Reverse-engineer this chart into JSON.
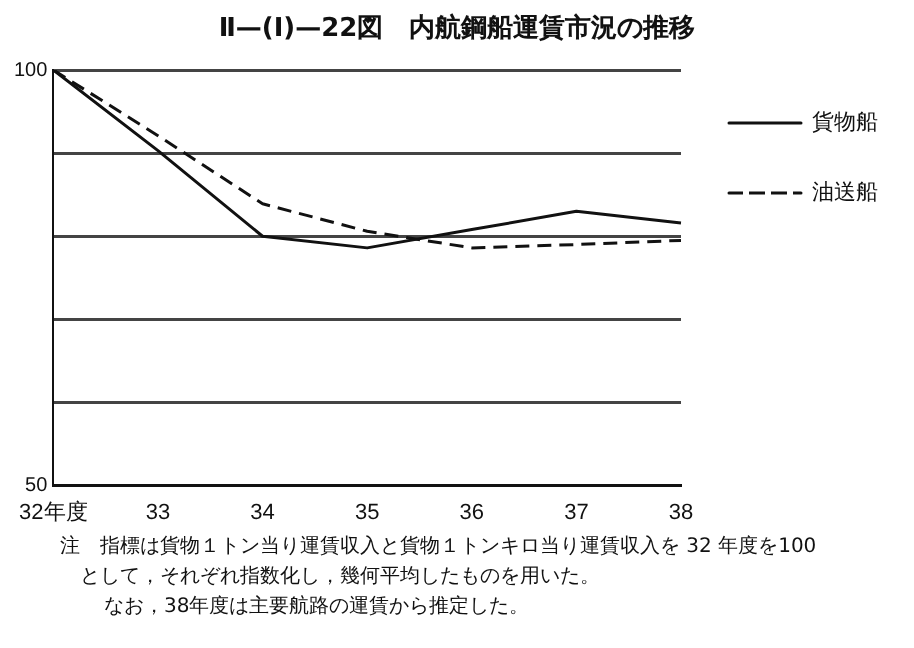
{
  "chart_data": {
    "type": "line",
    "title": "Ⅱ—(Ⅰ)—22図　内航鋼船運賃市況の推移",
    "categories": [
      "32年度",
      "33",
      "34",
      "35",
      "36",
      "37",
      "38"
    ],
    "series": [
      {
        "name": "貨物船",
        "color": "#111111",
        "line_style": "solid",
        "values": [
          100,
          90.3,
          80,
          78.6,
          80.8,
          83,
          81.6
        ]
      },
      {
        "name": "油送船",
        "color": "#111111",
        "line_style": "dashed",
        "values": [
          100,
          92.1,
          83.9,
          80.6,
          78.6,
          79,
          79.5
        ]
      }
    ],
    "ylim": [
      50,
      100
    ],
    "yticks": [
      50,
      {
        "value": 60,
        "label": null
      },
      {
        "value": 70,
        "label": null
      },
      {
        "value": 80,
        "label": null
      },
      {
        "value": 90,
        "label": null
      },
      100
    ],
    "grid": "y",
    "legend": "right",
    "marker": "none",
    "annotations": [
      "注　指標は貨物１トン当り運賃収入と貨物１トンキロ当り運賃収入を 32 年度を100",
      "として，それぞれ指数化し，幾何平均したものを用いた。",
      "なお，38年度は主要航路の運賃から推定した。"
    ]
  }
}
